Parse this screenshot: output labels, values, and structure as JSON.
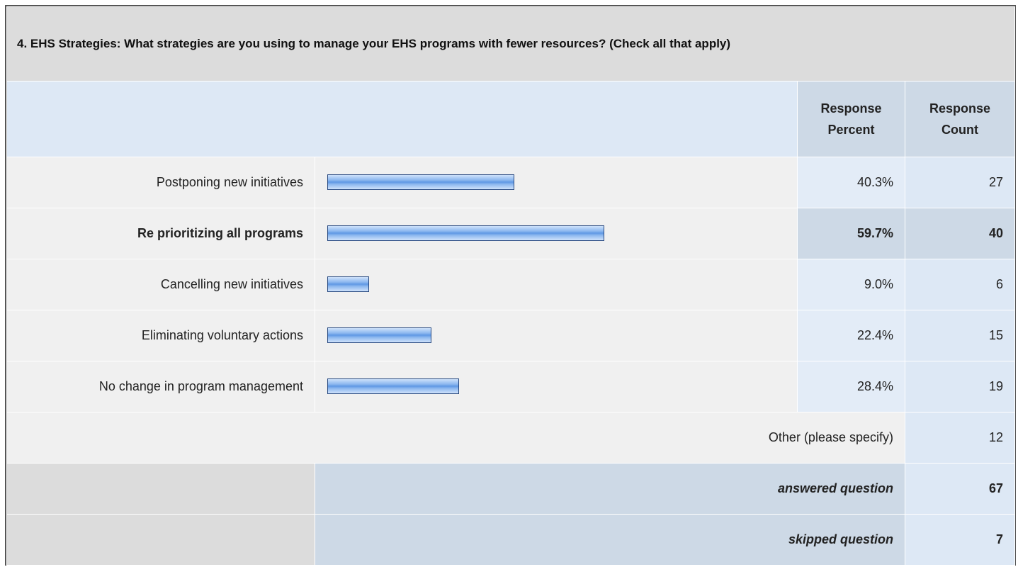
{
  "title": "4. EHS Strategies: What strategies are you using to manage your EHS programs with fewer resources? (Check all that apply)",
  "header": {
    "percent": "Response Percent",
    "count": "Response Count"
  },
  "rows": [
    {
      "label": "Postponing new initiatives",
      "percent": 40.3,
      "percent_label": "40.3%",
      "count": 27,
      "bold": false
    },
    {
      "label": "Re prioritizing all programs",
      "percent": 59.7,
      "percent_label": "59.7%",
      "count": 40,
      "bold": true
    },
    {
      "label": "Cancelling new initiatives",
      "percent": 9.0,
      "percent_label": "9.0%",
      "count": 6,
      "bold": false
    },
    {
      "label": "Eliminating voluntary actions",
      "percent": 22.4,
      "percent_label": "22.4%",
      "count": 15,
      "bold": false
    },
    {
      "label": "No change in program management",
      "percent": 28.4,
      "percent_label": "28.4%",
      "count": 19,
      "bold": false
    }
  ],
  "other": {
    "label": "Other (please specify)",
    "count": 12
  },
  "answered": {
    "label": "answered question",
    "count": 67
  },
  "skipped": {
    "label": "skipped question",
    "count": 7
  }
}
